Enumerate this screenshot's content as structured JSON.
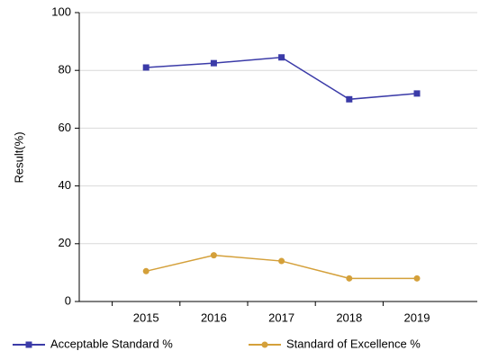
{
  "chart_data": {
    "type": "line",
    "ylabel": "Result(%)",
    "categories": [
      "2015",
      "2016",
      "2017",
      "2018",
      "2019"
    ],
    "series": [
      {
        "name": "Acceptable Standard %",
        "color": "#3b3ba8",
        "values": [
          81,
          82.5,
          84.5,
          70,
          72
        ]
      },
      {
        "name": "Standard of Excellence %",
        "color": "#d4a03a",
        "values": [
          10.5,
          16,
          14,
          8,
          8
        ]
      }
    ],
    "ylim": [
      0,
      100
    ],
    "yticks": [
      0,
      20,
      40,
      60,
      80,
      100
    ],
    "grid": true,
    "legend": "bottom"
  }
}
